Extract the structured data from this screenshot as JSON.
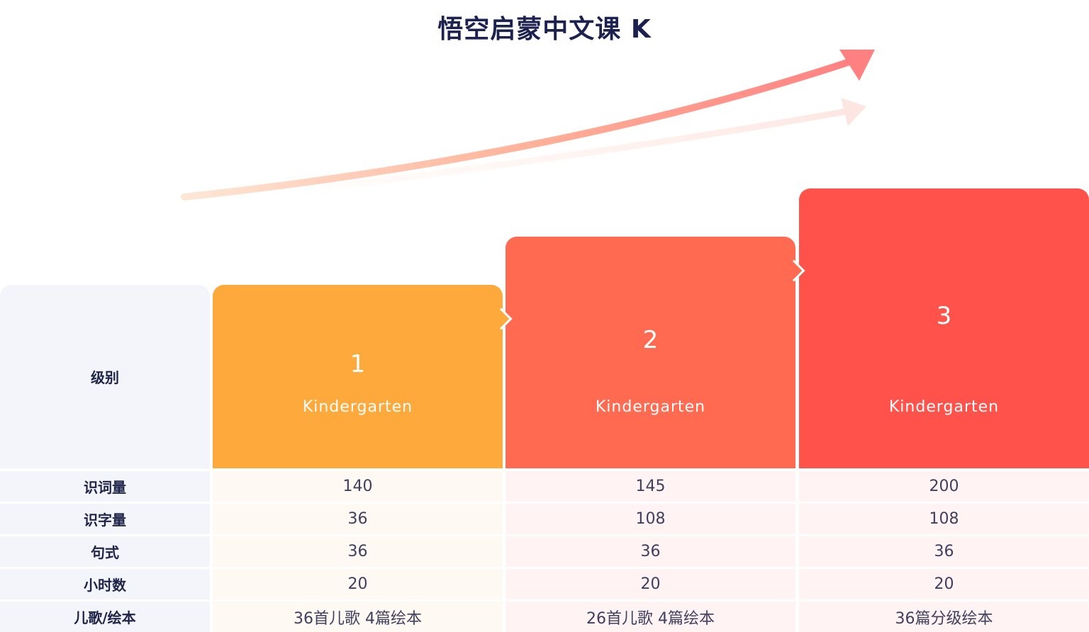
{
  "title": "悟空启蒙中文课 K",
  "colors": {
    "level1": "#fea93b",
    "level2": "#ff6a50",
    "level3": "#ff524b",
    "label_bg": "#f3f5fa"
  },
  "header_label": "级别",
  "levels": [
    {
      "number": "1",
      "name": "Kindergarten"
    },
    {
      "number": "2",
      "name": "Kindergarten"
    },
    {
      "number": "3",
      "name": "Kindergarten"
    }
  ],
  "rows": [
    {
      "label": "识词量",
      "values": [
        "140",
        "145",
        "200"
      ]
    },
    {
      "label": "识字量",
      "values": [
        "36",
        "108",
        "108"
      ]
    },
    {
      "label": "句式",
      "values": [
        "36",
        "36",
        "36"
      ]
    },
    {
      "label": "小时数",
      "values": [
        "20",
        "20",
        "20"
      ]
    },
    {
      "label": "儿歌/绘本",
      "values": [
        "36首儿歌 4篇绘本",
        "26首儿歌 4篇绘本",
        "36篇分级绘本"
      ]
    }
  ]
}
